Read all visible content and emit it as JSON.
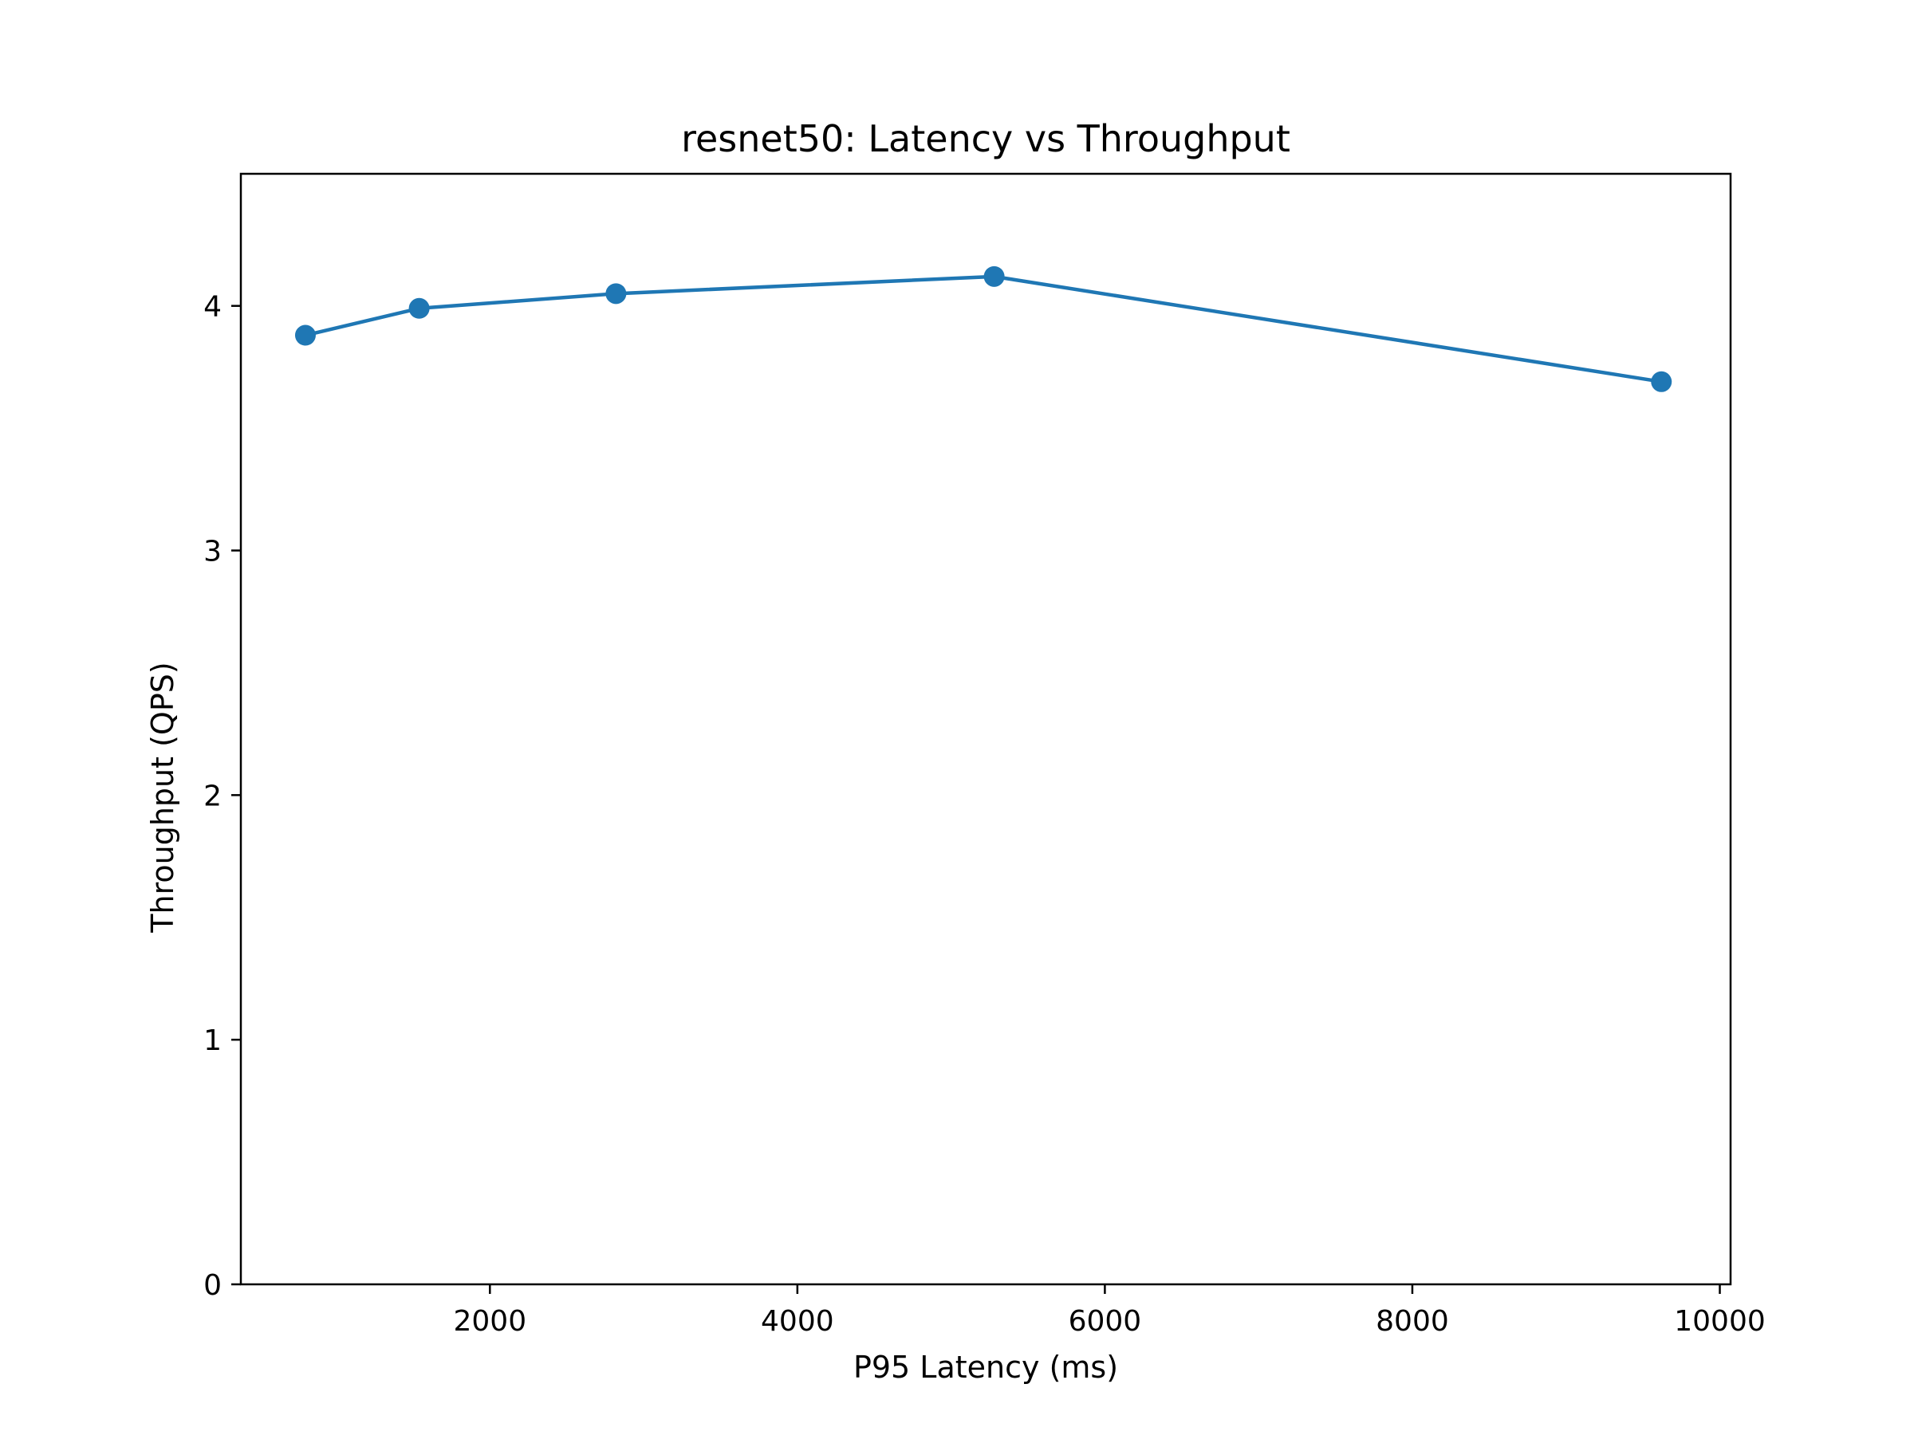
{
  "chart_data": {
    "type": "line",
    "title": "resnet50: Latency vs Throughput",
    "xlabel": "P95 Latency (ms)",
    "ylabel": "Throughput (QPS)",
    "xlim": [
      380,
      10070
    ],
    "ylim": [
      0,
      4.54
    ],
    "x_ticks": [
      2000,
      4000,
      6000,
      8000,
      10000
    ],
    "y_ticks": [
      0,
      1,
      2,
      3,
      4
    ],
    "grid": false,
    "series": [
      {
        "color": "#1f77b4",
        "marker": "circle",
        "points": [
          {
            "x": 800,
            "y": 3.88
          },
          {
            "x": 1540,
            "y": 3.99
          },
          {
            "x": 2820,
            "y": 4.05
          },
          {
            "x": 5280,
            "y": 4.12
          },
          {
            "x": 9620,
            "y": 3.69
          }
        ]
      }
    ]
  }
}
